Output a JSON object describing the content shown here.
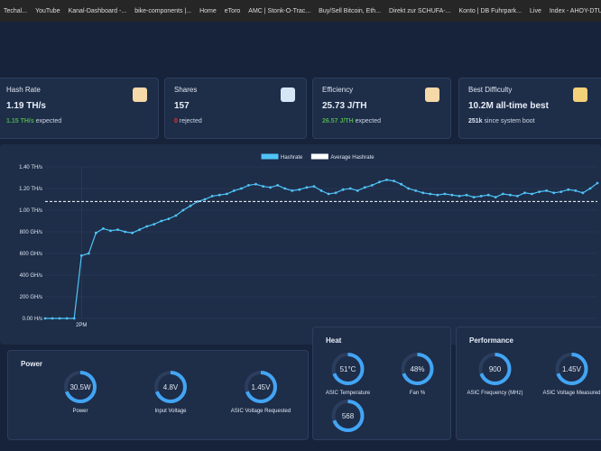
{
  "bookmarks": [
    "Techal...",
    "YouTube",
    "Kanal-Dashboard -...",
    "bike-components |...",
    "Home",
    "eToro",
    "AMC | Stonk-O-Trac...",
    "Buy/Sell Bitcoin, Eth...",
    "Direkt zur SCHUFA-...",
    "Konto | DB Fuhrpark...",
    "Live",
    "Index - AHOY-DTU"
  ],
  "cards": [
    {
      "title": "Hash Rate",
      "value": "1.19 TH/s",
      "sub_value": "1.15 TH/s",
      "sub_text": "expected"
    },
    {
      "title": "Shares",
      "value": "157",
      "sub_value": "0",
      "sub_text": "rejected"
    },
    {
      "title": "Efficiency",
      "value": "25.73 J/TH",
      "sub_value": "26.57 J/TH",
      "sub_text": "expected"
    },
    {
      "title": "Best Difficulty",
      "value": "10.2M all-time best",
      "sub_value": "251k",
      "sub_text": "since system boot"
    }
  ],
  "chart_data": {
    "type": "line",
    "categories": [
      null,
      null,
      null,
      null,
      null,
      "2PM",
      null,
      null,
      null,
      null,
      null,
      null,
      null,
      null,
      null,
      null,
      null,
      null,
      null,
      null,
      null,
      null,
      null,
      null,
      null,
      null,
      null,
      null,
      null,
      null,
      null,
      null,
      null,
      null,
      null,
      null,
      null,
      null,
      null,
      null,
      null,
      null,
      null,
      null,
      null,
      null,
      null,
      null,
      null,
      null,
      null,
      null,
      null,
      null,
      null,
      null,
      null,
      null,
      null,
      null,
      null,
      null,
      null,
      null,
      null,
      null,
      null,
      null,
      null,
      null,
      null,
      null,
      null,
      null,
      null,
      null,
      null
    ],
    "series": [
      {
        "name": "Hashrate",
        "color": "#4fc3f7",
        "values": [
          0,
          0,
          0,
          0,
          0,
          580,
          600,
          790,
          830,
          810,
          820,
          800,
          790,
          820,
          850,
          870,
          900,
          920,
          950,
          1000,
          1040,
          1080,
          1100,
          1130,
          1140,
          1150,
          1180,
          1200,
          1230,
          1240,
          1220,
          1210,
          1230,
          1200,
          1180,
          1190,
          1210,
          1220,
          1180,
          1150,
          1160,
          1190,
          1200,
          1180,
          1210,
          1230,
          1260,
          1280,
          1270,
          1240,
          1200,
          1180,
          1160,
          1150,
          1140,
          1150,
          1140,
          1130,
          1140,
          1120,
          1130,
          1140,
          1120,
          1150,
          1140,
          1130,
          1160,
          1150,
          1170,
          1180,
          1160,
          1170,
          1190,
          1180,
          1160,
          1200,
          1250
        ]
      },
      {
        "name": "Average Hashrate",
        "color": "#ffffff",
        "level": 1080
      }
    ],
    "ylim": [
      0,
      1400
    ],
    "yticks": [
      {
        "value": 0,
        "label": "0.00 H/s"
      },
      {
        "value": 200,
        "label": "200 GH/s"
      },
      {
        "value": 400,
        "label": "400 GH/s"
      },
      {
        "value": 600,
        "label": "600 GH/s"
      },
      {
        "value": 800,
        "label": "800 GH/s"
      },
      {
        "value": 1000,
        "label": "1.00 TH/s"
      },
      {
        "value": 1200,
        "label": "1.20 TH/s"
      },
      {
        "value": 1400,
        "label": "1.40 TH/s"
      }
    ],
    "grid": true
  },
  "panels": [
    {
      "title": "Power",
      "gauges": [
        {
          "value": "30.5W",
          "label": "Power"
        },
        {
          "value": "4.8V",
          "label": "Input Voltage"
        },
        {
          "value": "1.45V",
          "label": "ASIC Voltage Requested"
        }
      ]
    },
    {
      "title": "Heat",
      "gauges": [
        {
          "value": "51°C",
          "label": "ASIC Temperature"
        },
        {
          "value": "48%",
          "label": "Fan %"
        },
        {
          "value": "568"
        }
      ]
    },
    {
      "title": "Performance",
      "gauges": [
        {
          "value": "900",
          "label": "ASIC Frequency (MHz)"
        },
        {
          "value": "1.45V",
          "label": "ASIC Voltage Measured"
        }
      ]
    }
  ]
}
